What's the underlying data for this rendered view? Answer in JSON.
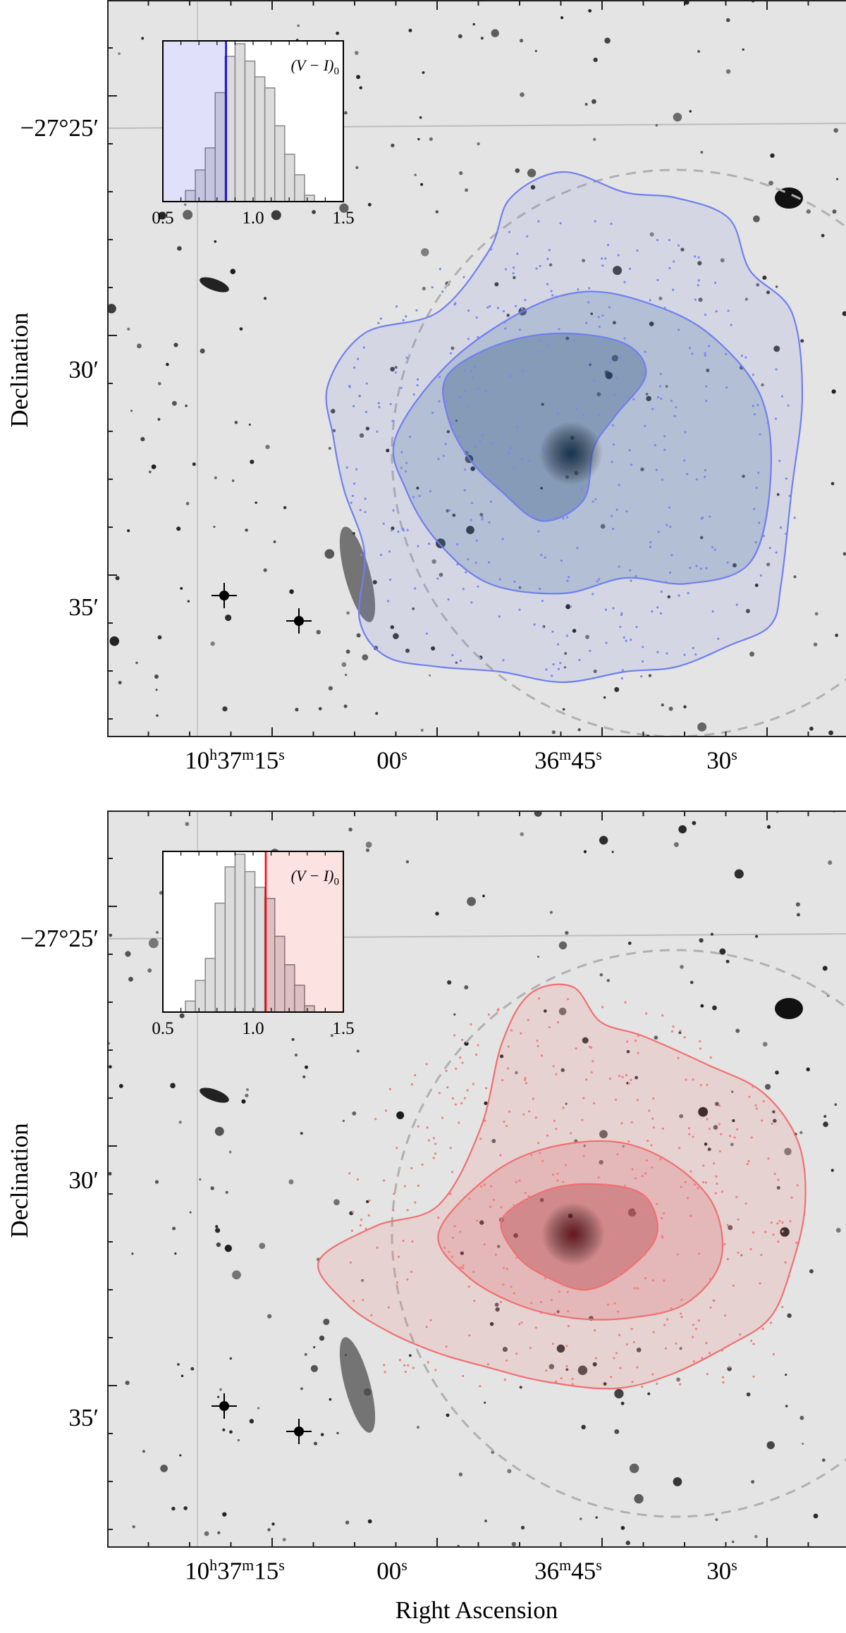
{
  "chart_data": [
    {
      "type": "image-contour",
      "panel": "top",
      "population": "blue",
      "xlabel": "Right Ascension",
      "ylabel": "Declination",
      "xticks": [
        {
          "main": "10",
          "h": "h",
          "m1": "37",
          "m": "m",
          "s1": "15",
          "s": "s"
        },
        {
          "main": "00",
          "s": "s"
        },
        {
          "main": "36",
          "m": "m",
          "s1": "45",
          "s": "s"
        },
        {
          "main": "30",
          "s": "s"
        }
      ],
      "yticks": [
        "−27°25′",
        "30′",
        "35′"
      ],
      "contour_color": "#6f7ff0",
      "inset": {
        "type": "bar",
        "label": "(V − I)",
        "label_sub": "0",
        "xlim": [
          0.5,
          1.5
        ],
        "xticks": [
          "0.5",
          "1.0",
          "1.5"
        ],
        "bin_edges": [
          0.625,
          0.68,
          0.735,
          0.79,
          0.845,
          0.9,
          0.955,
          1.01,
          1.065,
          1.12,
          1.175,
          1.23,
          1.285,
          1.34
        ],
        "relative_counts": [
          7,
          20,
          34,
          69,
          92,
          100,
          89,
          79,
          72,
          48,
          30,
          17,
          4
        ],
        "threshold": 0.85,
        "selected_side": "below",
        "line_color": "#0000ff",
        "shade_color": "#e0e0fa"
      }
    },
    {
      "type": "image-contour",
      "panel": "bottom",
      "population": "red",
      "xlabel": "Right Ascension",
      "ylabel": "Declination",
      "xticks": [
        {
          "main": "10",
          "h": "h",
          "m1": "37",
          "m": "m",
          "s1": "15",
          "s": "s"
        },
        {
          "main": "00",
          "s": "s"
        },
        {
          "main": "36",
          "m": "m",
          "s1": "45",
          "s": "s"
        },
        {
          "main": "30",
          "s": "s"
        }
      ],
      "yticks": [
        "−27°25′",
        "30′",
        "35′"
      ],
      "contour_color": "#f07070",
      "inset": {
        "type": "bar",
        "label": "(V − I)",
        "label_sub": "0",
        "xlim": [
          0.5,
          1.5
        ],
        "xticks": [
          "0.5",
          "1.0",
          "1.5"
        ],
        "bin_edges": [
          0.625,
          0.68,
          0.735,
          0.79,
          0.845,
          0.9,
          0.955,
          1.01,
          1.065,
          1.12,
          1.175,
          1.23,
          1.285,
          1.34
        ],
        "relative_counts": [
          7,
          20,
          34,
          69,
          92,
          100,
          89,
          79,
          72,
          48,
          30,
          17,
          4
        ],
        "threshold": 1.07,
        "selected_side": "above",
        "line_color": "#ff0000",
        "shade_color": "#fde2e2"
      }
    }
  ]
}
